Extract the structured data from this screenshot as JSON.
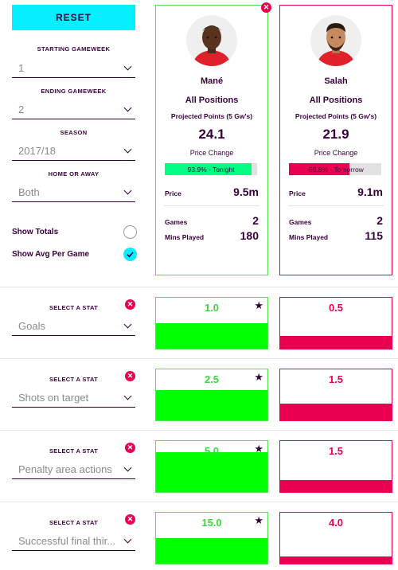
{
  "filters": {
    "reset_label": "RESET",
    "starting_gameweek": {
      "label": "STARTING GAMEWEEK",
      "value": "1"
    },
    "ending_gameweek": {
      "label": "ENDING GAMEWEEK",
      "value": "2"
    },
    "season": {
      "label": "SEASON",
      "value": "2017/18"
    },
    "home_away": {
      "label": "HOME OR AWAY",
      "value": "Both"
    },
    "show_totals": {
      "label": "Show Totals",
      "checked": false
    },
    "show_avg": {
      "label": "Show Avg Per Game",
      "checked": true
    }
  },
  "players": [
    {
      "name": "Mané",
      "position": "All Positions",
      "projected_label": "Projected Points (5 Gw's)",
      "projected": "24.1",
      "price_change_label": "Price Change",
      "price_change_text": "93.9% - Tonight",
      "price_change_pct": 93.9,
      "price_change_color": "#00ff85",
      "price_label": "Price",
      "price": "9.5m",
      "games_label": "Games",
      "games": "2",
      "mins_label": "Mins Played",
      "mins": "180",
      "accent": "#52e252"
    },
    {
      "name": "Salah",
      "position": "All Positions",
      "projected_label": "Projected Points (5 Gw's)",
      "projected": "21.9",
      "price_change_label": "Price Change",
      "price_change_text": "-65.8% - Tomorrow",
      "price_change_pct": 65.8,
      "price_change_color": "#e90052",
      "price_label": "Price",
      "price": "9.1m",
      "games_label": "Games",
      "games": "2",
      "mins_label": "Mins Played",
      "mins": "115",
      "accent": "#e90052"
    }
  ],
  "stat_rows": [
    {
      "label": "SELECT A STAT",
      "stat": "Goals",
      "values": [
        "1.0",
        "0.5"
      ],
      "fill": [
        0.5,
        0.25
      ]
    },
    {
      "label": "SELECT A STAT",
      "stat": "Shots on target",
      "values": [
        "2.5",
        "1.5"
      ],
      "fill": [
        0.6,
        0.33
      ]
    },
    {
      "label": "SELECT A STAT",
      "stat": "Penalty area actions",
      "values": [
        "5.0",
        "1.5"
      ],
      "fill": [
        0.78,
        0.24
      ]
    },
    {
      "label": "SELECT A STAT",
      "stat": "Successful final thir...",
      "values": [
        "15.0",
        "4.0"
      ],
      "fill": [
        0.5,
        0.14
      ]
    }
  ],
  "colors": {
    "green": "#00ff00",
    "pink": "#e90052",
    "cyan": "#05f0ff",
    "purple": "#37003c"
  },
  "icons": {
    "close": "close-icon",
    "star": "star-icon",
    "check": "check-icon",
    "chevron": "chevron-down-icon"
  }
}
